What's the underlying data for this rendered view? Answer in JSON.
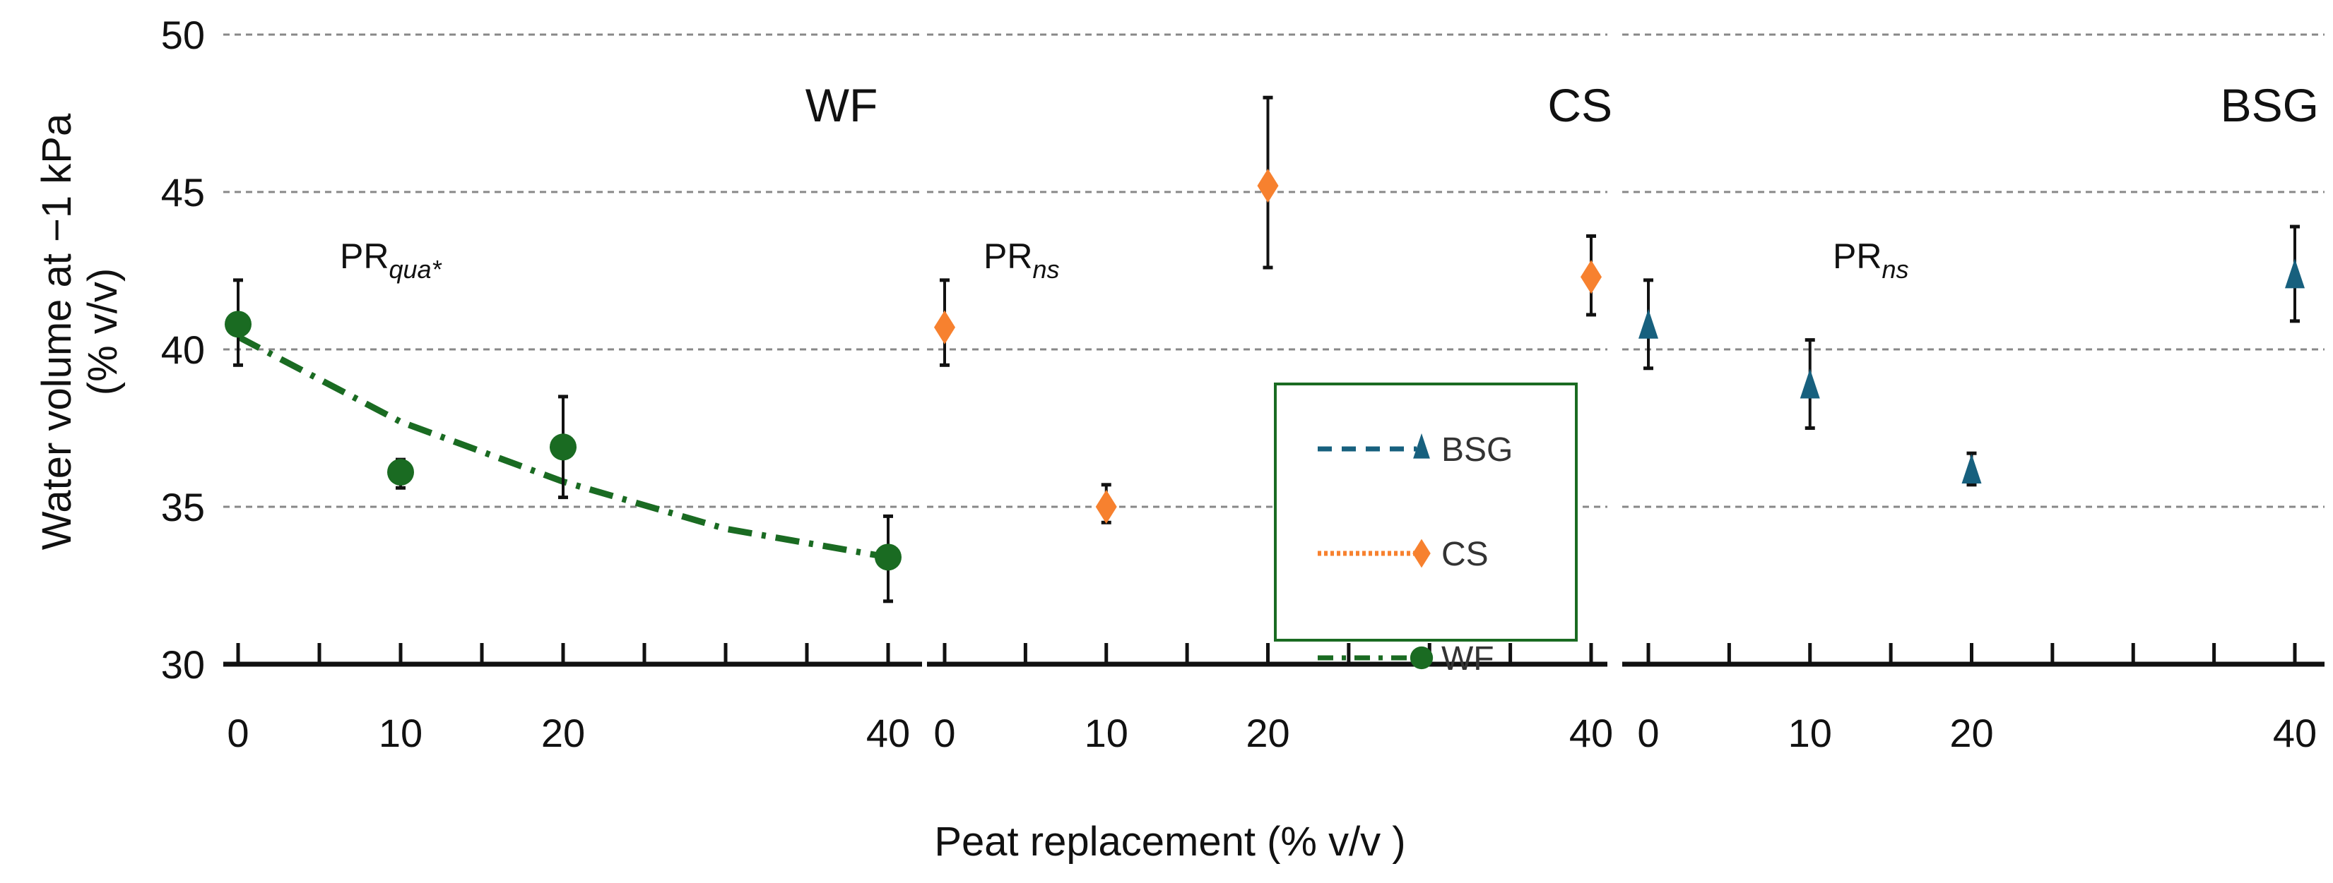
{
  "chart_data": {
    "type": "scatter",
    "ylabel_line1": "Water volume at −1 kPa",
    "ylabel_line2": "(% v/v)",
    "xlabel": "Peat replacement (% v/v )",
    "ylim": [
      30,
      50
    ],
    "yticks": [
      "30",
      "35",
      "40",
      "45",
      "50"
    ],
    "xlim": [
      0,
      40
    ],
    "xticks": [
      "0",
      "10",
      "20",
      "40"
    ],
    "grid": "horizontal dashed",
    "legend_position": "center-bottom",
    "panels": [
      {
        "name": "WF",
        "title": "WF",
        "annot_main": "PR",
        "annot_sub": "qua*",
        "color": "#1a6b22",
        "marker": "circle",
        "x": [
          0,
          10,
          20,
          40
        ],
        "y": [
          40.8,
          36.1,
          36.9,
          33.4
        ],
        "err_low": [
          39.5,
          35.6,
          35.3,
          32.0
        ],
        "err_high": [
          42.2,
          36.5,
          38.5,
          34.7
        ],
        "fit": {
          "x": [
            0,
            10,
            20,
            30,
            40
          ],
          "y": [
            40.4,
            37.7,
            35.8,
            34.3,
            33.4
          ]
        }
      },
      {
        "name": "CS",
        "title": "CS",
        "annot_main": "PR",
        "annot_sub": "ns",
        "color": "#f7812f",
        "marker": "diamond",
        "x": [
          0,
          10,
          20,
          40
        ],
        "y": [
          40.7,
          35.0,
          45.2,
          42.3
        ],
        "err_low": [
          39.5,
          34.5,
          42.6,
          41.1
        ],
        "err_high": [
          42.2,
          35.7,
          48.0,
          43.6
        ]
      },
      {
        "name": "BSG",
        "title": "BSG",
        "annot_main": "PR",
        "annot_sub": "ns",
        "color": "#17607e",
        "marker": "triangle",
        "x": [
          0,
          10,
          20,
          40
        ],
        "y": [
          40.7,
          38.8,
          36.1,
          42.3
        ],
        "err_low": [
          39.4,
          37.5,
          35.7,
          40.9
        ],
        "err_high": [
          42.2,
          40.3,
          36.7,
          43.9
        ]
      }
    ],
    "legend": [
      {
        "label": "BSG",
        "color": "#17607e",
        "line": "dashed",
        "marker": "triangle"
      },
      {
        "label": "CS",
        "color": "#f7812f",
        "line": "dotted",
        "marker": "diamond"
      },
      {
        "label": "WF",
        "color": "#1a6b22",
        "line": "dash-dot",
        "marker": "circle"
      }
    ],
    "legend_border_color": "#1a6b22"
  }
}
